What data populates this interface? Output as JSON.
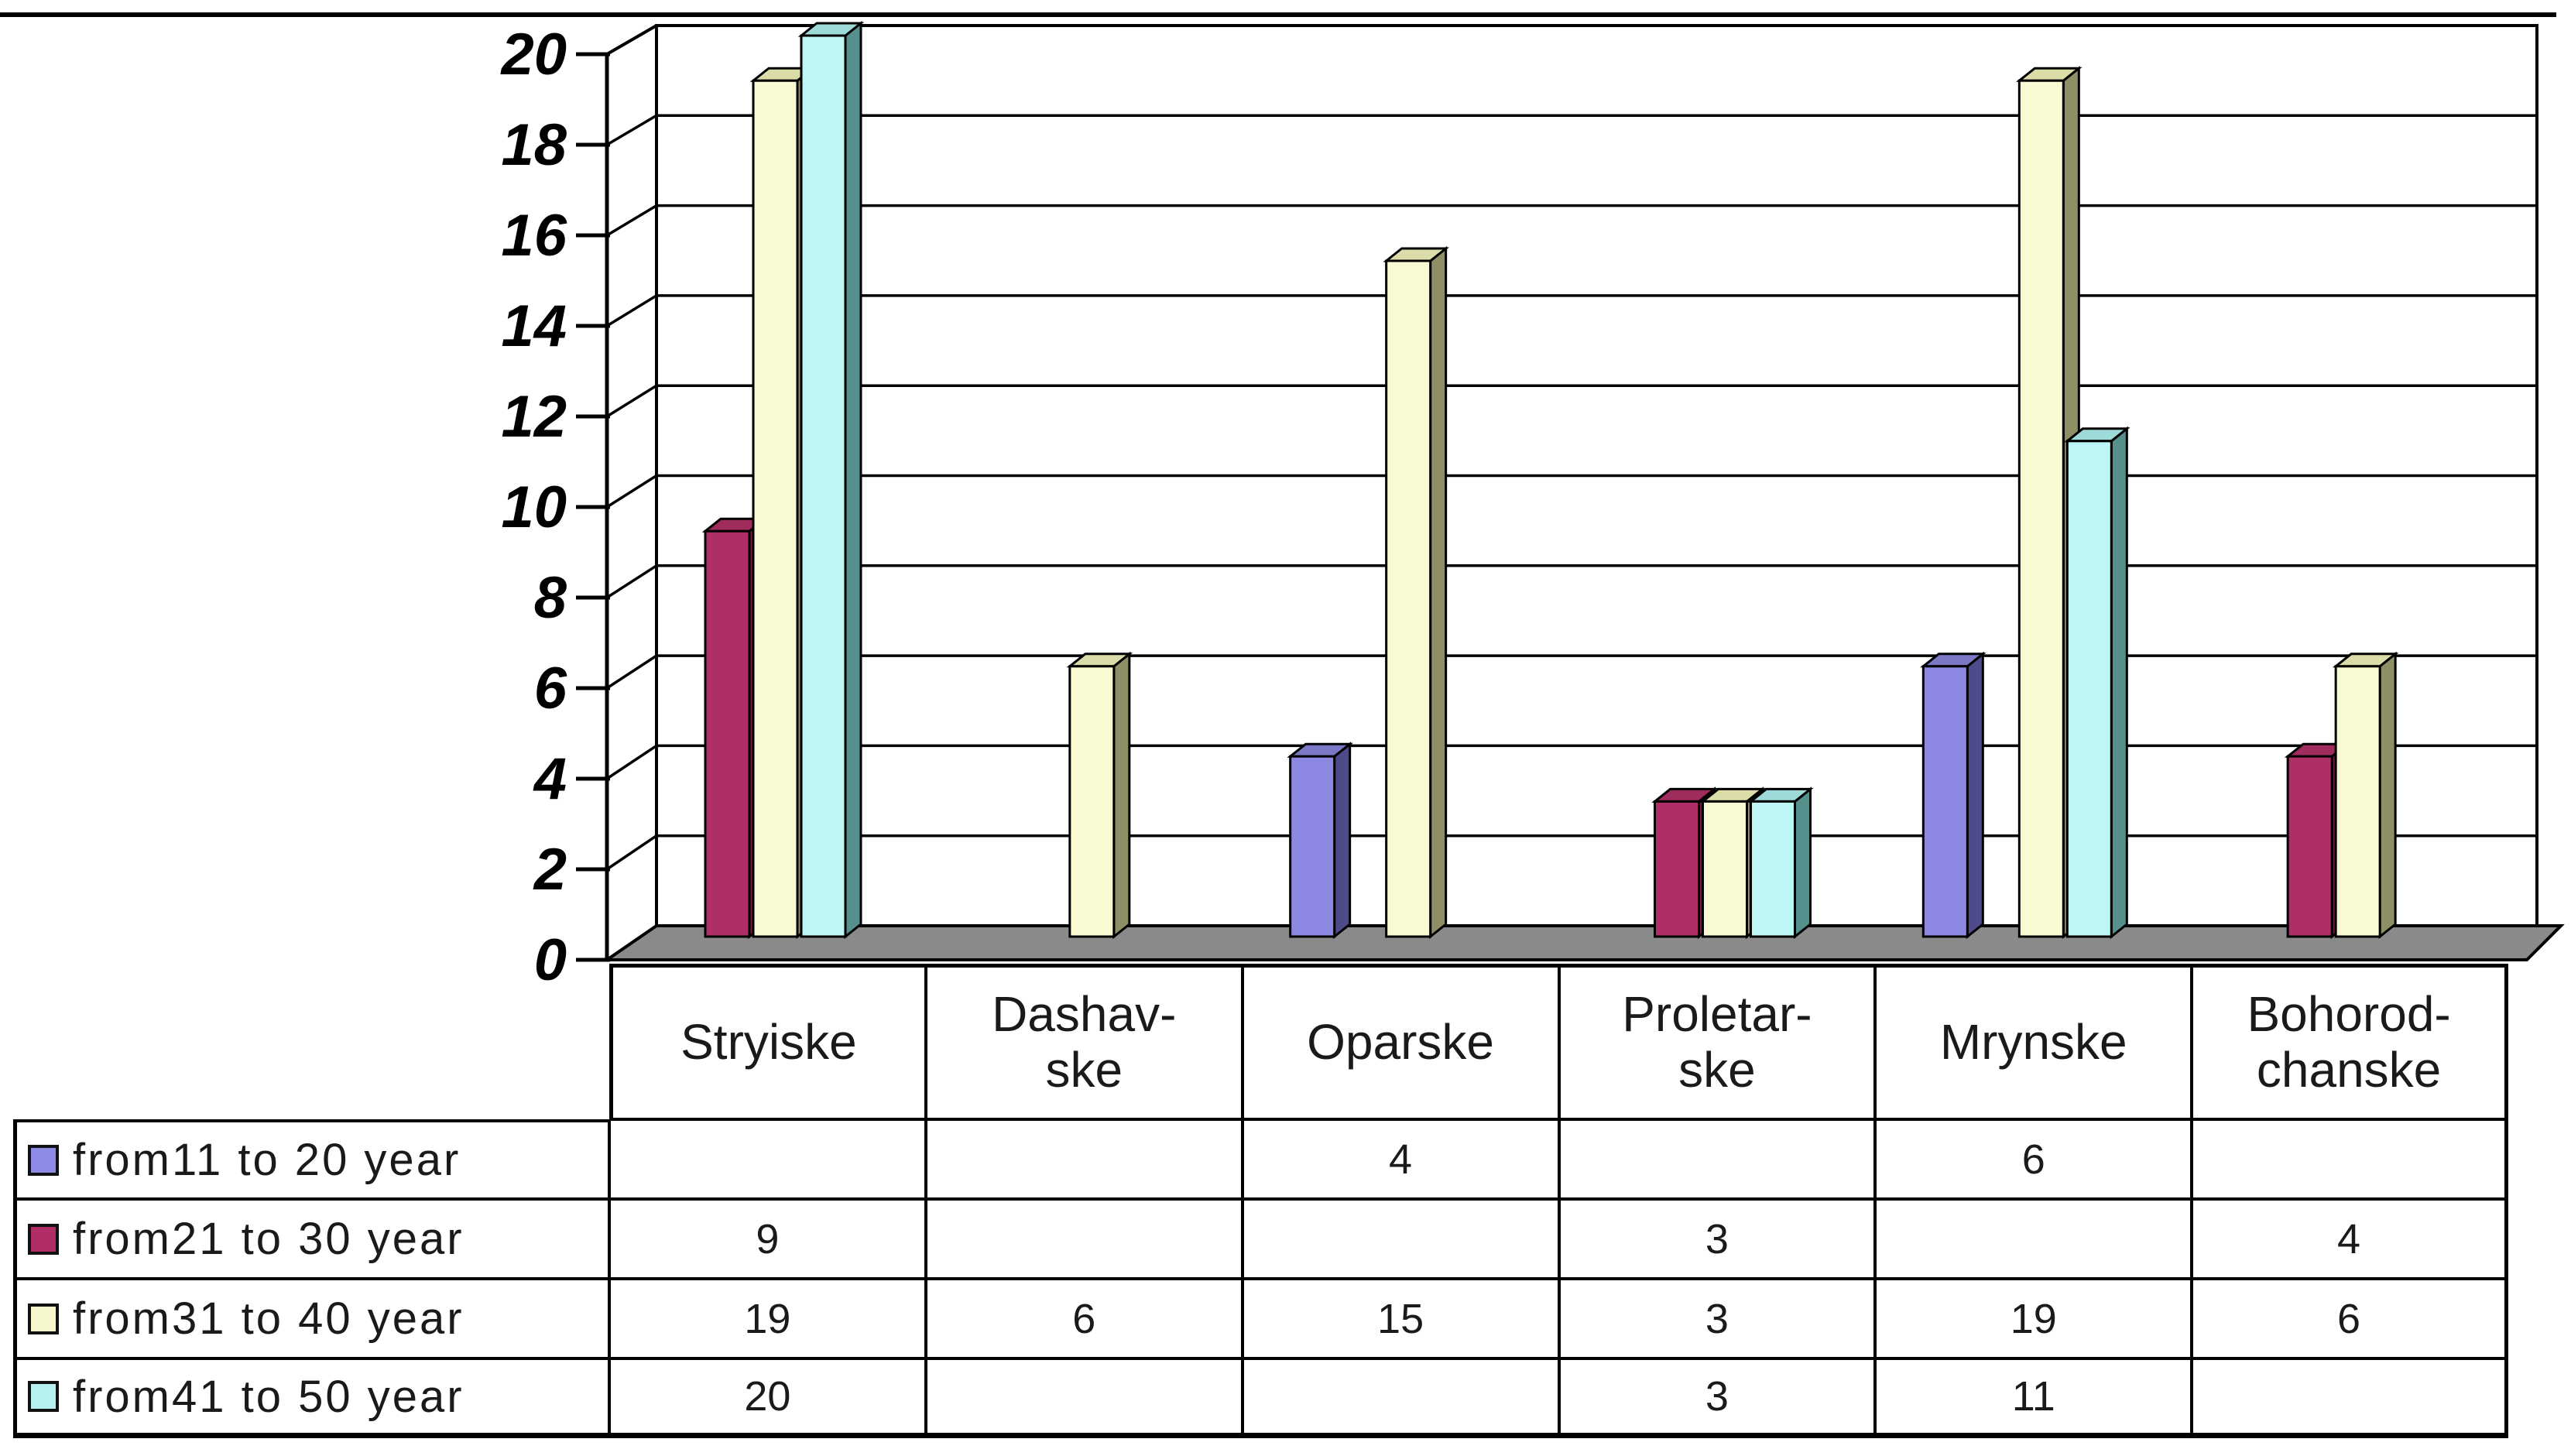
{
  "chart_data": {
    "type": "bar",
    "projection": "3d",
    "title": "",
    "xlabel": "",
    "ylabel": "",
    "categories": [
      "Stryiske",
      "Dashavske",
      "Oparske",
      "Proletarske",
      "Mrynske",
      "Bohorodchanske"
    ],
    "categories_display": [
      "Stryiske",
      "Dashav-\nske",
      "Oparske",
      "Proletar-\nske",
      "Mrynske",
      "Bohorod-\nchanske"
    ],
    "series": [
      {
        "name": "from11 to 20 year",
        "values": [
          null,
          null,
          4,
          null,
          6,
          null
        ],
        "front": "#8D89E2",
        "top": "#7B78C6",
        "side": "#4E4B8A",
        "swatch": "#8D8AE5"
      },
      {
        "name": "from21 to 30 year",
        "values": [
          9,
          null,
          null,
          3,
          null,
          4
        ],
        "front": "#B02E68",
        "top": "#A02C5E",
        "side": "#6E1C40",
        "swatch": "#B02D68"
      },
      {
        "name": "from31 to 40 year",
        "values": [
          19,
          6,
          15,
          3,
          19,
          6
        ],
        "front": "#FAFAD2",
        "top": "#DCDCA8",
        "side": "#8F8F66",
        "swatch": "#F7F7CE"
      },
      {
        "name": "from41 to 50 year",
        "values": [
          20,
          null,
          null,
          3,
          11,
          null
        ],
        "front": "#BDF6F4",
        "top": "#9EDAD8",
        "side": "#55908C",
        "swatch": "#B8F2F0"
      }
    ],
    "ylim": [
      0,
      20
    ],
    "ytick_step": 2,
    "yticks": [
      "0",
      "2",
      "4",
      "6",
      "8",
      "10",
      "12",
      "14",
      "16",
      "18",
      "20"
    ],
    "grid": true,
    "legend_position": "table-left-column",
    "wall_color": "#FFFFFF",
    "floor_color": "#8A8A8A",
    "line_color": "#000000"
  },
  "table": {
    "rows": [
      {
        "label": "from11 to 20 year",
        "cells": [
          "",
          "",
          "4",
          "",
          "6",
          ""
        ]
      },
      {
        "label": "from21 to 30 year",
        "cells": [
          "9",
          "",
          "",
          "3",
          "",
          "4"
        ]
      },
      {
        "label": "from31 to 40 year",
        "cells": [
          "19",
          "6",
          "15",
          "3",
          "19",
          "6"
        ]
      },
      {
        "label": "from41 to 50 year",
        "cells": [
          "20",
          "",
          "",
          "3",
          "11",
          ""
        ]
      }
    ]
  }
}
